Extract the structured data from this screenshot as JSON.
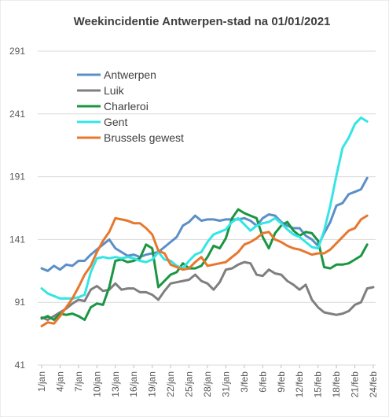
{
  "chart_data": {
    "type": "line",
    "title": "Weekincidentie  Antwerpen-stad na 01/01/2021",
    "xlabel": "",
    "ylabel": "",
    "ylim": [
      41,
      291
    ],
    "yticks": [
      41,
      91,
      141,
      191,
      241,
      291
    ],
    "grid": true,
    "legend_position": "top-left",
    "xtick_labels": [
      "1/jan",
      "4/jan",
      "7/jan",
      "10/jan",
      "13/jan",
      "16/jan",
      "19/jan",
      "22/jan",
      "25/jan",
      "28/jan",
      "31/jan",
      "3/feb",
      "6/feb",
      "9/feb",
      "12/feb",
      "15/feb",
      "18/feb",
      "21/feb",
      "24/feb"
    ],
    "x_start_day": 1,
    "x_end_day": 55,
    "series": [
      {
        "name": "Antwerpen",
        "color": "#5b8fc7",
        "points": [
          [
            1,
            118
          ],
          [
            2,
            116
          ],
          [
            3,
            120
          ],
          [
            4,
            117
          ],
          [
            5,
            121
          ],
          [
            6,
            120
          ],
          [
            7,
            124
          ],
          [
            8,
            124
          ],
          [
            9,
            129
          ],
          [
            10,
            133
          ],
          [
            11,
            137
          ],
          [
            12,
            141
          ],
          [
            13,
            134
          ],
          [
            14,
            131
          ],
          [
            15,
            128
          ],
          [
            16,
            129
          ],
          [
            17,
            127
          ],
          [
            18,
            129
          ],
          [
            19,
            130
          ],
          [
            20,
            131
          ],
          [
            21,
            135
          ],
          [
            22,
            139
          ],
          [
            23,
            143
          ],
          [
            24,
            152
          ],
          [
            25,
            155
          ],
          [
            26,
            160
          ],
          [
            27,
            156
          ],
          [
            28,
            157
          ],
          [
            29,
            157
          ],
          [
            30,
            156
          ],
          [
            31,
            157
          ],
          [
            32,
            157
          ],
          [
            33,
            157
          ],
          [
            34,
            158
          ],
          [
            35,
            156
          ],
          [
            36,
            152
          ],
          [
            37,
            158
          ],
          [
            38,
            161
          ],
          [
            39,
            160
          ],
          [
            40,
            155
          ],
          [
            41,
            152
          ],
          [
            42,
            150
          ],
          [
            43,
            150
          ],
          [
            44,
            144
          ],
          [
            45,
            141
          ],
          [
            46,
            136
          ],
          [
            47,
            146
          ],
          [
            48,
            155
          ],
          [
            49,
            168
          ],
          [
            50,
            170
          ],
          [
            51,
            177
          ],
          [
            52,
            179
          ],
          [
            53,
            181
          ],
          [
            54,
            190
          ]
        ]
      },
      {
        "name": "Luik",
        "color": "#7f7f7f",
        "points": [
          [
            1,
            79
          ],
          [
            2,
            77
          ],
          [
            3,
            80
          ],
          [
            4,
            83
          ],
          [
            5,
            86
          ],
          [
            6,
            90
          ],
          [
            7,
            93
          ],
          [
            8,
            92
          ],
          [
            9,
            101
          ],
          [
            10,
            104
          ],
          [
            11,
            100
          ],
          [
            12,
            101
          ],
          [
            13,
            106
          ],
          [
            14,
            101
          ],
          [
            15,
            102
          ],
          [
            16,
            102
          ],
          [
            17,
            99
          ],
          [
            18,
            99
          ],
          [
            19,
            97
          ],
          [
            20,
            93
          ],
          [
            21,
            100
          ],
          [
            22,
            106
          ],
          [
            23,
            107
          ],
          [
            24,
            108
          ],
          [
            25,
            109
          ],
          [
            26,
            113
          ],
          [
            27,
            108
          ],
          [
            28,
            106
          ],
          [
            29,
            101
          ],
          [
            30,
            107
          ],
          [
            31,
            117
          ],
          [
            32,
            118
          ],
          [
            33,
            121
          ],
          [
            34,
            123
          ],
          [
            35,
            122
          ],
          [
            36,
            113
          ],
          [
            37,
            112
          ],
          [
            38,
            117
          ],
          [
            39,
            114
          ],
          [
            40,
            113
          ],
          [
            41,
            108
          ],
          [
            42,
            105
          ],
          [
            43,
            101
          ],
          [
            44,
            105
          ],
          [
            45,
            93
          ],
          [
            46,
            87
          ],
          [
            47,
            83
          ],
          [
            48,
            82
          ],
          [
            49,
            81
          ],
          [
            50,
            82
          ],
          [
            51,
            84
          ],
          [
            52,
            89
          ],
          [
            53,
            91
          ],
          [
            54,
            102
          ],
          [
            55,
            103
          ]
        ]
      },
      {
        "name": "Charleroi",
        "color": "#1a9641",
        "points": [
          [
            1,
            78
          ],
          [
            2,
            80
          ],
          [
            3,
            77
          ],
          [
            4,
            82
          ],
          [
            5,
            81
          ],
          [
            6,
            82
          ],
          [
            7,
            80
          ],
          [
            8,
            77
          ],
          [
            9,
            87
          ],
          [
            10,
            90
          ],
          [
            11,
            89
          ],
          [
            12,
            103
          ],
          [
            13,
            124
          ],
          [
            14,
            125
          ],
          [
            15,
            123
          ],
          [
            16,
            124
          ],
          [
            17,
            126
          ],
          [
            18,
            137
          ],
          [
            19,
            134
          ],
          [
            20,
            103
          ],
          [
            21,
            108
          ],
          [
            22,
            113
          ],
          [
            23,
            115
          ],
          [
            24,
            122
          ],
          [
            25,
            118
          ],
          [
            26,
            118
          ],
          [
            27,
            120
          ],
          [
            28,
            127
          ],
          [
            29,
            136
          ],
          [
            30,
            134
          ],
          [
            31,
            142
          ],
          [
            32,
            158
          ],
          [
            33,
            165
          ],
          [
            34,
            162
          ],
          [
            35,
            160
          ],
          [
            36,
            158
          ],
          [
            37,
            143
          ],
          [
            38,
            134
          ],
          [
            39,
            146
          ],
          [
            40,
            152
          ],
          [
            41,
            155
          ],
          [
            42,
            148
          ],
          [
            43,
            144
          ],
          [
            44,
            147
          ],
          [
            45,
            146
          ],
          [
            46,
            140
          ],
          [
            47,
            119
          ],
          [
            48,
            118
          ],
          [
            49,
            121
          ],
          [
            50,
            121
          ],
          [
            51,
            122
          ],
          [
            52,
            125
          ],
          [
            53,
            128
          ],
          [
            54,
            137
          ]
        ]
      },
      {
        "name": "Gent",
        "color": "#33e5e5",
        "points": [
          [
            1,
            102
          ],
          [
            2,
            98
          ],
          [
            3,
            96
          ],
          [
            4,
            94
          ],
          [
            5,
            94
          ],
          [
            6,
            94
          ],
          [
            7,
            95
          ],
          [
            8,
            97
          ],
          [
            9,
            115
          ],
          [
            10,
            126
          ],
          [
            11,
            127
          ],
          [
            12,
            126
          ],
          [
            13,
            127
          ],
          [
            14,
            126
          ],
          [
            15,
            127
          ],
          [
            16,
            126
          ],
          [
            17,
            124
          ],
          [
            18,
            123
          ],
          [
            19,
            125
          ],
          [
            20,
            131
          ],
          [
            21,
            125
          ],
          [
            22,
            124
          ],
          [
            23,
            120
          ],
          [
            24,
            118
          ],
          [
            25,
            124
          ],
          [
            26,
            129
          ],
          [
            27,
            131
          ],
          [
            28,
            139
          ],
          [
            29,
            145
          ],
          [
            30,
            147
          ],
          [
            31,
            149
          ],
          [
            32,
            155
          ],
          [
            33,
            158
          ],
          [
            34,
            153
          ],
          [
            35,
            148
          ],
          [
            36,
            152
          ],
          [
            37,
            154
          ],
          [
            38,
            155
          ],
          [
            39,
            158
          ],
          [
            40,
            154
          ],
          [
            41,
            149
          ],
          [
            42,
            145
          ],
          [
            43,
            143
          ],
          [
            44,
            139
          ],
          [
            45,
            135
          ],
          [
            46,
            134
          ],
          [
            47,
            148
          ],
          [
            48,
            168
          ],
          [
            49,
            192
          ],
          [
            50,
            214
          ],
          [
            51,
            222
          ],
          [
            52,
            233
          ],
          [
            53,
            238
          ],
          [
            54,
            235
          ]
        ]
      },
      {
        "name": "Brussels gewest",
        "color": "#e8772e",
        "points": [
          [
            1,
            72
          ],
          [
            2,
            75
          ],
          [
            3,
            74
          ],
          [
            4,
            80
          ],
          [
            5,
            87
          ],
          [
            6,
            94
          ],
          [
            7,
            103
          ],
          [
            8,
            113
          ],
          [
            9,
            120
          ],
          [
            10,
            131
          ],
          [
            11,
            140
          ],
          [
            12,
            147
          ],
          [
            13,
            158
          ],
          [
            14,
            157
          ],
          [
            15,
            156
          ],
          [
            16,
            154
          ],
          [
            17,
            154
          ],
          [
            18,
            150
          ],
          [
            19,
            145
          ],
          [
            20,
            132
          ],
          [
            21,
            130
          ],
          [
            22,
            121
          ],
          [
            23,
            119
          ],
          [
            24,
            117
          ],
          [
            25,
            118
          ],
          [
            26,
            123
          ],
          [
            27,
            127
          ],
          [
            28,
            120
          ],
          [
            29,
            121
          ],
          [
            30,
            122
          ],
          [
            31,
            123
          ],
          [
            32,
            127
          ],
          [
            33,
            131
          ],
          [
            34,
            137
          ],
          [
            35,
            139
          ],
          [
            36,
            142
          ],
          [
            37,
            146
          ],
          [
            38,
            147
          ],
          [
            39,
            141
          ],
          [
            40,
            139
          ],
          [
            41,
            136
          ],
          [
            42,
            134
          ],
          [
            43,
            133
          ],
          [
            44,
            131
          ],
          [
            45,
            129
          ],
          [
            46,
            130
          ],
          [
            47,
            130
          ],
          [
            48,
            133
          ],
          [
            49,
            138
          ],
          [
            50,
            143
          ],
          [
            51,
            148
          ],
          [
            52,
            150
          ],
          [
            53,
            157
          ],
          [
            54,
            160
          ]
        ]
      }
    ]
  }
}
